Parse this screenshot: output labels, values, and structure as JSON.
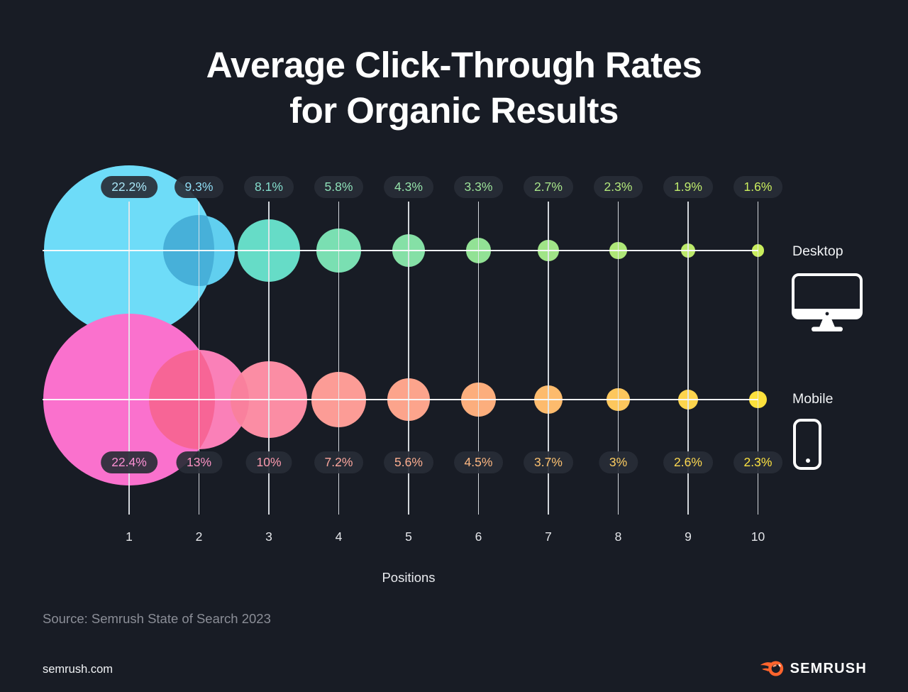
{
  "title": {
    "line1": "Average Click-Through Rates",
    "line2": "for Organic Results"
  },
  "chart_data": {
    "type": "bubble",
    "title": "Average Click-Through Rates for Organic Results",
    "xlabel": "Positions",
    "categories": [
      "1",
      "2",
      "3",
      "4",
      "5",
      "6",
      "7",
      "8",
      "9",
      "10"
    ],
    "series": [
      {
        "name": "Desktop",
        "values": [
          22.2,
          9.3,
          8.1,
          5.8,
          4.3,
          3.3,
          2.7,
          2.3,
          1.9,
          1.6
        ],
        "labels": [
          "22.2%",
          "9.3%",
          "8.1%",
          "5.8%",
          "4.3%",
          "3.3%",
          "2.7%",
          "2.3%",
          "1.9%",
          "1.6%"
        ],
        "bubble_colors": [
          "#6edcf8",
          "#61cfef",
          "#66dcc7",
          "#7adfb2",
          "#85e0a6",
          "#92e295",
          "#a0e487",
          "#aee777",
          "#bce96a",
          "#c9ed5d"
        ],
        "label_colors": [
          "#a8e6f7",
          "#8fdcf3",
          "#84ddcc",
          "#8ee0b8",
          "#95e2aa",
          "#9de39a",
          "#a8e58b",
          "#b3e87c",
          "#bfeb6d",
          "#cbee5e"
        ]
      },
      {
        "name": "Mobile",
        "values": [
          22.4,
          13,
          10,
          7.2,
          5.6,
          4.5,
          3.7,
          3,
          2.6,
          2.3
        ],
        "labels": [
          "22.4%",
          "13%",
          "10%",
          "7.2%",
          "5.6%",
          "4.5%",
          "3.7%",
          "3%",
          "2.6%",
          "2.3%"
        ],
        "bubble_colors": [
          "#fa71cd",
          "#fa80b8",
          "#fb8da4",
          "#fc9c96",
          "#fca48c",
          "#fcae7d",
          "#fdbb6d",
          "#fdc75d",
          "#fdd44d",
          "#fde13c"
        ],
        "label_colors": [
          "#fa8fd3",
          "#fa92c3",
          "#fb9aae",
          "#fca79d",
          "#fcae90",
          "#fcb781",
          "#fdc271",
          "#fdcd61",
          "#fdd951",
          "#fde341"
        ]
      }
    ],
    "overlap_colors": {
      "desktop_1_2": "#47b0d9",
      "mobile_1_2": "#f76596",
      "mobile_2_3": "#f9809d"
    },
    "layout": {
      "grid": true,
      "legend_position": "right",
      "label_style": "dark-pill"
    }
  },
  "legend": {
    "desktop_label": "Desktop",
    "mobile_label": "Mobile"
  },
  "footer": {
    "source": "Source: Semrush State of Search 2023",
    "site": "semrush.com",
    "logo_text": "SEMRUSH"
  },
  "colors": {
    "background": "#181c25",
    "pill_background": "#282c36",
    "grid_line": "#e4e7ec",
    "title_text": "#ffffff",
    "source_text": "#8b8e97",
    "logo_orange": "#ff642d"
  }
}
